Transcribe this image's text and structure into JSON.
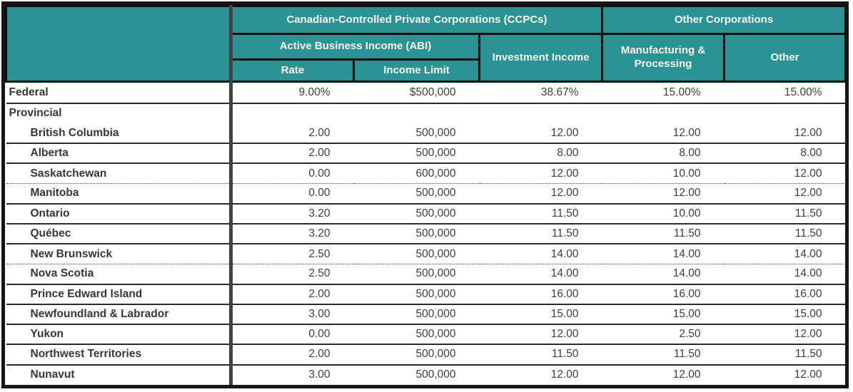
{
  "table": {
    "header": {
      "ccpc_group": "Canadian-Controlled Private Corporations (CCPCs)",
      "other_group": "Other Corporations",
      "abi": "Active Business Income (ABI)",
      "rate": "Rate",
      "income_limit": "Income Limit",
      "investment_income": "Investment Income",
      "manufacturing_processing": "Manufacturing & Processing",
      "other": "Other"
    },
    "federal": {
      "label": "Federal",
      "rate": "9.00%",
      "income_limit": "$500,000",
      "investment_income": "38.67%",
      "manufacturing_processing": "15.00%",
      "other": "15.00%"
    },
    "provincial_section_label": "Provincial",
    "provinces": [
      {
        "label": "British Columbia",
        "rate": "2.00",
        "income_limit": "500,000",
        "investment_income": "12.00",
        "manufacturing_processing": "12.00",
        "other": "12.00"
      },
      {
        "label": "Alberta",
        "rate": "2.00",
        "income_limit": "500,000",
        "investment_income": "8.00",
        "manufacturing_processing": "8.00",
        "other": "8.00"
      },
      {
        "label": "Saskatchewan",
        "rate": "0.00",
        "income_limit": "600,000",
        "investment_income": "12.00",
        "manufacturing_processing": "10.00",
        "other": "12.00"
      },
      {
        "label": "Manitoba",
        "rate": "0.00",
        "income_limit": "500,000",
        "investment_income": "12.00",
        "manufacturing_processing": "12.00",
        "other": "12.00"
      },
      {
        "label": "Ontario",
        "rate": "3.20",
        "income_limit": "500,000",
        "investment_income": "11.50",
        "manufacturing_processing": "10.00",
        "other": "11.50"
      },
      {
        "label": "Québec",
        "rate": "3.20",
        "income_limit": "500,000",
        "investment_income": "11.50",
        "manufacturing_processing": "11.50",
        "other": "11.50"
      },
      {
        "label": "New Brunswick",
        "rate": "2.50",
        "income_limit": "500,000",
        "investment_income": "14.00",
        "manufacturing_processing": "14.00",
        "other": "14.00"
      },
      {
        "label": "Nova Scotia",
        "rate": "2.50",
        "income_limit": "500,000",
        "investment_income": "14.00",
        "manufacturing_processing": "14.00",
        "other": "14.00"
      },
      {
        "label": "Prince Edward Island",
        "rate": "2.00",
        "income_limit": "500,000",
        "investment_income": "16.00",
        "manufacturing_processing": "16.00",
        "other": "16.00"
      },
      {
        "label": "Newfoundland & Labrador",
        "rate": "3.00",
        "income_limit": "500,000",
        "investment_income": "15.00",
        "manufacturing_processing": "15.00",
        "other": "15.00"
      },
      {
        "label": "Yukon",
        "rate": "0.00",
        "income_limit": "500,000",
        "investment_income": "12.00",
        "manufacturing_processing": "2.50",
        "other": "12.00"
      },
      {
        "label": "Northwest Territories",
        "rate": "2.00",
        "income_limit": "500,000",
        "investment_income": "11.50",
        "manufacturing_processing": "11.50",
        "other": "11.50"
      },
      {
        "label": "Nunavut",
        "rate": "3.00",
        "income_limit": "500,000",
        "investment_income": "12.00",
        "manufacturing_processing": "12.00",
        "other": "12.00"
      }
    ]
  },
  "colors": {
    "header_bg": "#2A9494",
    "header_text": "#F7F4E9",
    "body_text": "#3D3D3D",
    "border_dark": "#161616",
    "divider_gray": "#424242"
  }
}
